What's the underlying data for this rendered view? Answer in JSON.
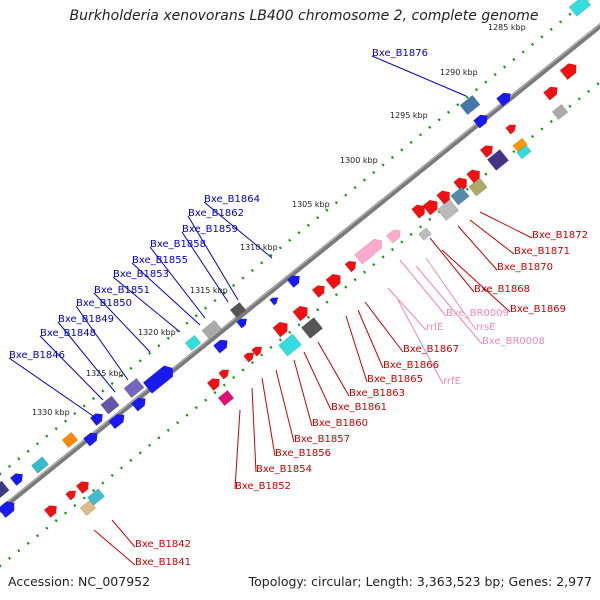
{
  "title": "Burkholderia xenovorans LB400 chromosome 2, complete genome",
  "footer": {
    "accession": "Accession: NC_007952",
    "summary": "Topology: circular; Length: 3,363,523 bp; Genes: 2,977"
  },
  "colors": {
    "forward_label": "#0000cc",
    "reverse_label": "#cc0000",
    "rna_label": "#ee88bb",
    "backbone": "#777777",
    "tick": "#119911"
  },
  "ticks": [
    "1285 kbp",
    "1290 kbp",
    "1295 kbp",
    "1300 kbp",
    "1305 kbp",
    "1310 kbp",
    "1315 kbp",
    "1320 kbp",
    "1325 kbp",
    "1330 kbp"
  ],
  "labels": {
    "forward": [
      "Bxe_B1876",
      "Bxe_B1864",
      "Bxe_B1862",
      "Bxe_B1859",
      "Bxe_B1858",
      "Bxe_B1855",
      "Bxe_B1853",
      "Bxe_B1851",
      "Bxe_B1850",
      "Bxe_B1849",
      "Bxe_B1848",
      "Bxe_B1846"
    ],
    "reverse": [
      "Bxe_B1872",
      "Bxe_B1871",
      "Bxe_B1870",
      "Bxe_B1868",
      "Bxe_B1869",
      "Bxe_B1867",
      "Bxe_B1866",
      "Bxe_B1865",
      "Bxe_B1863",
      "Bxe_B1861",
      "Bxe_B1860",
      "Bxe_B1857",
      "Bxe_B1856",
      "Bxe_B1854",
      "Bxe_B1852",
      "Bxe_B1842",
      "Bxe_B1841"
    ],
    "rna": [
      "Bxe_BR0009",
      "Bxe_BR0008",
      "rrlE",
      "rrsE",
      "rrfE"
    ]
  }
}
